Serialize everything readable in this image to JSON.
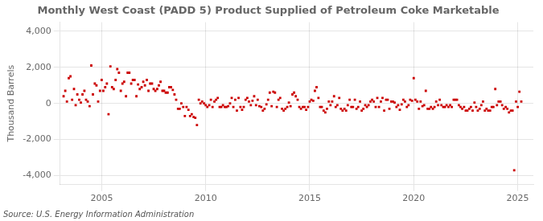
{
  "chart_data": {
    "type": "scatter",
    "title": "Monthly West Coast (PADD 5) Product Supplied of Petroleum Coke Marketable",
    "y_label": "Thousand Barrels",
    "annotations": [
      "Source: U.S. Energy Information Administration"
    ],
    "color": "#cc0000",
    "marker": "square",
    "grid": true,
    "xlim": [
      2003.0,
      2025.75
    ],
    "xticks": [
      2005,
      2010,
      2015,
      2020,
      2025
    ],
    "ylim": [
      -4500,
      4500
    ],
    "yticks": [
      {
        "value": -4000,
        "label": "-4,000"
      },
      {
        "value": -2000,
        "label": "-2,000"
      },
      0,
      {
        "value": 2000,
        "label": "2,000"
      },
      {
        "value": 4000,
        "label": "4,000"
      }
    ],
    "x": [
      2003.17,
      2003.25,
      2003.33,
      2003.42,
      2003.5,
      2003.58,
      2003.67,
      2003.75,
      2003.83,
      2003.92,
      2004.0,
      2004.08,
      2004.17,
      2004.25,
      2004.33,
      2004.42,
      2004.5,
      2004.58,
      2004.67,
      2004.75,
      2004.83,
      2004.92,
      2005.0,
      2005.08,
      2005.17,
      2005.25,
      2005.33,
      2005.42,
      2005.5,
      2005.58,
      2005.67,
      2005.75,
      2005.83,
      2005.92,
      2006.0,
      2006.08,
      2006.17,
      2006.25,
      2006.33,
      2006.42,
      2006.5,
      2006.58,
      2006.67,
      2006.75,
      2006.83,
      2006.92,
      2007.0,
      2007.08,
      2007.17,
      2007.25,
      2007.33,
      2007.42,
      2007.5,
      2007.58,
      2007.67,
      2007.75,
      2007.83,
      2007.92,
      2008.0,
      2008.08,
      2008.17,
      2008.25,
      2008.33,
      2008.42,
      2008.5,
      2008.58,
      2008.67,
      2008.75,
      2008.83,
      2008.92,
      2009.0,
      2009.08,
      2009.17,
      2009.25,
      2009.33,
      2009.42,
      2009.5,
      2009.58,
      2009.67,
      2009.75,
      2009.83,
      2009.92,
      2010.0,
      2010.08,
      2010.17,
      2010.25,
      2010.33,
      2010.42,
      2010.5,
      2010.58,
      2010.67,
      2010.75,
      2010.83,
      2010.92,
      2011.0,
      2011.08,
      2011.17,
      2011.25,
      2011.33,
      2011.42,
      2011.5,
      2011.58,
      2011.67,
      2011.75,
      2011.83,
      2011.92,
      2012.0,
      2012.08,
      2012.17,
      2012.25,
      2012.33,
      2012.42,
      2012.5,
      2012.58,
      2012.67,
      2012.75,
      2012.83,
      2012.92,
      2013.0,
      2013.08,
      2013.17,
      2013.25,
      2013.33,
      2013.42,
      2013.5,
      2013.58,
      2013.67,
      2013.75,
      2013.83,
      2013.92,
      2014.0,
      2014.08,
      2014.17,
      2014.25,
      2014.33,
      2014.42,
      2014.5,
      2014.58,
      2014.67,
      2014.75,
      2014.83,
      2014.92,
      2015.0,
      2015.08,
      2015.17,
      2015.25,
      2015.33,
      2015.42,
      2015.5,
      2015.58,
      2015.67,
      2015.75,
      2015.83,
      2015.92,
      2016.0,
      2016.08,
      2016.17,
      2016.25,
      2016.33,
      2016.42,
      2016.5,
      2016.58,
      2016.67,
      2016.75,
      2016.83,
      2016.92,
      2017.0,
      2017.08,
      2017.17,
      2017.25,
      2017.33,
      2017.42,
      2017.5,
      2017.58,
      2017.67,
      2017.75,
      2017.83,
      2017.92,
      2018.0,
      2018.08,
      2018.17,
      2018.25,
      2018.33,
      2018.42,
      2018.5,
      2018.58,
      2018.67,
      2018.75,
      2018.83,
      2018.92,
      2019.0,
      2019.08,
      2019.17,
      2019.25,
      2019.33,
      2019.42,
      2019.5,
      2019.58,
      2019.67,
      2019.75,
      2019.83,
      2019.92,
      2020.0,
      2020.08,
      2020.17,
      2020.25,
      2020.33,
      2020.42,
      2020.5,
      2020.58,
      2020.67,
      2020.75,
      2020.83,
      2020.92,
      2021.0,
      2021.08,
      2021.17,
      2021.25,
      2021.33,
      2021.42,
      2021.5,
      2021.58,
      2021.67,
      2021.75,
      2021.83,
      2021.92,
      2022.0,
      2022.08,
      2022.17,
      2022.25,
      2022.33,
      2022.42,
      2022.5,
      2022.58,
      2022.67,
      2022.75,
      2022.83,
      2022.92,
      2023.0,
      2023.08,
      2023.17,
      2023.25,
      2023.33,
      2023.42,
      2023.5,
      2023.58,
      2023.67,
      2023.75,
      2023.83,
      2023.92,
      2024.0,
      2024.08,
      2024.17,
      2024.25,
      2024.33,
      2024.42,
      2024.5,
      2024.58,
      2024.67,
      2024.75,
      2024.83,
      2024.92,
      2025.0,
      2025.08,
      2025.17
    ],
    "values": [
      400,
      700,
      100,
      1400,
      1500,
      200,
      800,
      -100,
      500,
      200,
      50,
      500,
      700,
      200,
      100,
      -150,
      2100,
      500,
      1100,
      1000,
      100,
      700,
      1300,
      700,
      900,
      1100,
      -600,
      2050,
      900,
      800,
      1300,
      1900,
      1700,
      700,
      1100,
      1200,
      400,
      1700,
      1700,
      1100,
      1300,
      1300,
      400,
      1050,
      800,
      900,
      1200,
      1000,
      1300,
      700,
      1100,
      1100,
      800,
      700,
      800,
      1000,
      1200,
      700,
      700,
      600,
      600,
      900,
      900,
      750,
      500,
      200,
      -300,
      -300,
      0,
      -200,
      -700,
      -200,
      -350,
      -700,
      -600,
      -750,
      -800,
      -1200,
      200,
      0,
      100,
      0,
      -100,
      -200,
      -100,
      200,
      -200,
      100,
      200,
      300,
      -200,
      -200,
      -100,
      -200,
      -200,
      -150,
      0,
      300,
      -200,
      200,
      -400,
      300,
      -200,
      -350,
      -200,
      200,
      300,
      100,
      -100,
      150,
      400,
      -100,
      200,
      -150,
      -200,
      -400,
      -300,
      -50,
      200,
      600,
      -150,
      650,
      600,
      -200,
      200,
      300,
      -300,
      -400,
      -300,
      -200,
      50,
      -150,
      500,
      600,
      400,
      200,
      -200,
      -300,
      -200,
      -200,
      -350,
      -200,
      100,
      200,
      150,
      700,
      900,
      300,
      -200,
      -200,
      -400,
      -500,
      -300,
      100,
      -100,
      100,
      400,
      -200,
      -100,
      300,
      -300,
      -400,
      -300,
      -400,
      -100,
      200,
      -200,
      -200,
      200,
      -300,
      -200,
      100,
      -400,
      -300,
      -100,
      -200,
      -100,
      100,
      200,
      100,
      -200,
      300,
      -200,
      100,
      300,
      -400,
      200,
      200,
      -300,
      100,
      100,
      50,
      -200,
      -100,
      -350,
      -50,
      200,
      100,
      -200,
      -100,
      200,
      150,
      1400,
      200,
      100,
      -300,
      100,
      -150,
      -100,
      700,
      -300,
      -300,
      -200,
      -300,
      -200,
      100,
      -100,
      200,
      -100,
      -200,
      -200,
      -100,
      -200,
      -100,
      -200,
      200,
      200,
      200,
      -100,
      -200,
      -300,
      -200,
      -400,
      -400,
      -300,
      -200,
      -400,
      50,
      -200,
      -400,
      -300,
      -100,
      100,
      -400,
      -300,
      -400,
      -400,
      -200,
      -200,
      800,
      -100,
      100,
      100,
      -100,
      -300,
      -200,
      -300,
      -500,
      -400,
      -400,
      -3700,
      100,
      -200,
      650,
      100
    ]
  }
}
